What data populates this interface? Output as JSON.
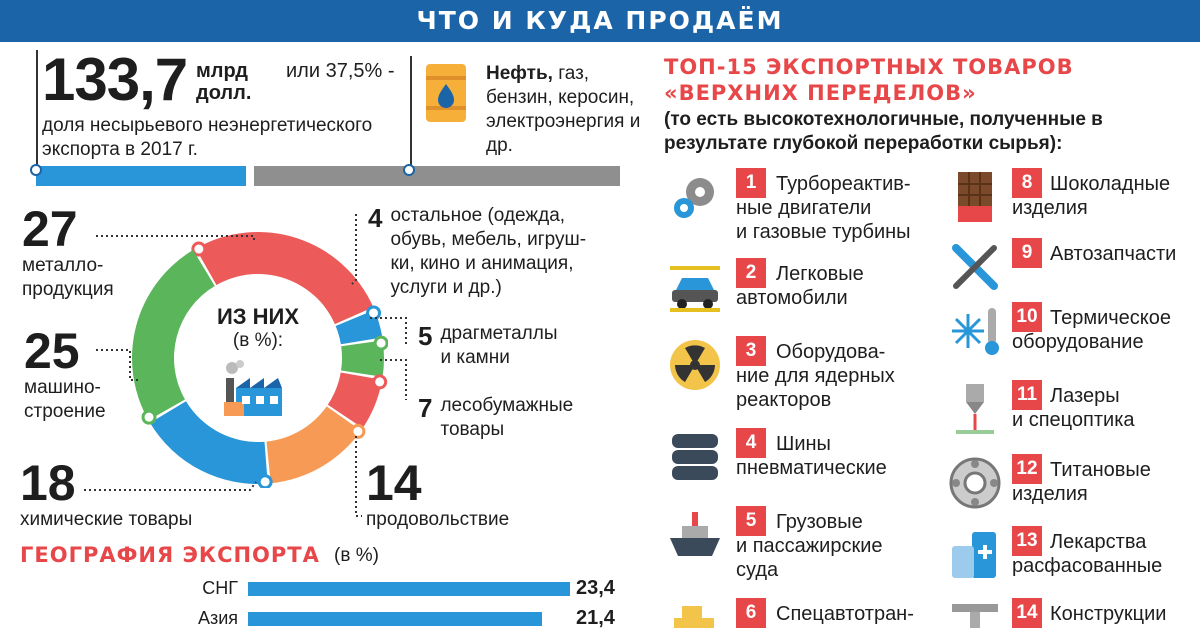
{
  "header": {
    "title": "ЧТО И КУДА ПРОДАЁМ"
  },
  "summary": {
    "value": "133,7",
    "unit": "млрд долл.",
    "share": "или 37,5% -",
    "share_desc": "доля несырьевого неэнергетического экспорта в 2017 г.",
    "other_desc_bold": "Нефть,",
    "other_desc": " газ, бензин, керосин, электроэнергия и др."
  },
  "donut": {
    "center_title": "ИЗ НИХ",
    "center_unit": "(в %):"
  },
  "chart_data": [
    {
      "type": "pie",
      "title": "ИЗ НИХ (в %):",
      "categories": [
        "металлопродукция",
        "остальное (одежда, обувь, мебель, игрушки, кино и анимация, услуги и др.)",
        "драгметаллы и камни",
        "лесобумажные товары",
        "продовольствие",
        "химические товары",
        "машиностроение"
      ],
      "values": [
        27,
        4,
        5,
        7,
        14,
        18,
        25
      ],
      "value_labels": [
        "27",
        "4",
        "5",
        "7",
        "14",
        "18",
        "25"
      ],
      "label_lines": [
        [
          "металло-",
          "продукция"
        ],
        [
          "остальное (одежда,",
          "обувь, мебель, игруш-",
          "ки, кино и анимация,",
          "услуги и др.)"
        ],
        [
          "драгметаллы",
          "и камни"
        ],
        [
          "лесобумажные",
          "товары"
        ],
        [
          "продовольствие"
        ],
        [
          "химические товары"
        ],
        [
          "машино-",
          "строение"
        ]
      ],
      "colors": [
        "#ec5a5a",
        "#2896d8",
        "#5bb55b",
        "#ec5a5a",
        "#f69a55",
        "#2896d8",
        "#5bb55b"
      ]
    },
    {
      "type": "bar",
      "title": "ГЕОГРАФИЯ ЭКСПОРТА",
      "unit": "(в %)",
      "categories": [
        "СНГ",
        "Азия"
      ],
      "values": [
        23.4,
        21.4
      ],
      "value_labels": [
        "23,4",
        "21,4"
      ],
      "xlim": [
        0,
        23.4
      ]
    }
  ],
  "top15": {
    "title_line1": "ТОП-15 ЭКСПОРТНЫХ ТОВАРОВ",
    "title_line2": "«ВЕРХНИХ ПЕРЕДЕЛОВ»",
    "subtitle": "(то есть высокотехнологичные, полученные в результате глубокой переработки сырья):",
    "items": [
      {
        "n": "1",
        "lines": [
          "Турбореактив-",
          "ные двигатели",
          "и газовые турбины"
        ],
        "icon": "gear-icon"
      },
      {
        "n": "2",
        "lines": [
          "Легковые",
          "автомобили"
        ],
        "icon": "car-icon"
      },
      {
        "n": "3",
        "lines": [
          "Оборудова-",
          "ние для ядерных",
          "реакторов"
        ],
        "icon": "radiation-icon"
      },
      {
        "n": "4",
        "lines": [
          "Шины",
          "пневматические"
        ],
        "icon": "tires-icon"
      },
      {
        "n": "5",
        "lines": [
          "Грузовые",
          "и пассажирские",
          "суда"
        ],
        "icon": "ship-icon"
      },
      {
        "n": "6",
        "lines": [
          "Спецавтотран-"
        ],
        "icon": "truck-icon"
      },
      {
        "n": "8",
        "lines": [
          "Шоколадные",
          "изделия"
        ],
        "icon": "chocolate-icon"
      },
      {
        "n": "9",
        "lines": [
          "Автозапчасти"
        ],
        "icon": "wrench-icon"
      },
      {
        "n": "10",
        "lines": [
          "Термическое",
          "оборудование"
        ],
        "icon": "snowflake-thermometer-icon"
      },
      {
        "n": "11",
        "lines": [
          "Лазеры",
          "и спецоптика"
        ],
        "icon": "laser-icon"
      },
      {
        "n": "12",
        "lines": [
          "Титановые",
          "изделия"
        ],
        "icon": "bearing-icon"
      },
      {
        "n": "13",
        "lines": [
          "Лекарства",
          "расфасованные"
        ],
        "icon": "medicine-icon"
      },
      {
        "n": "14",
        "lines": [
          "Конструкции"
        ],
        "icon": "beam-icon"
      }
    ]
  }
}
